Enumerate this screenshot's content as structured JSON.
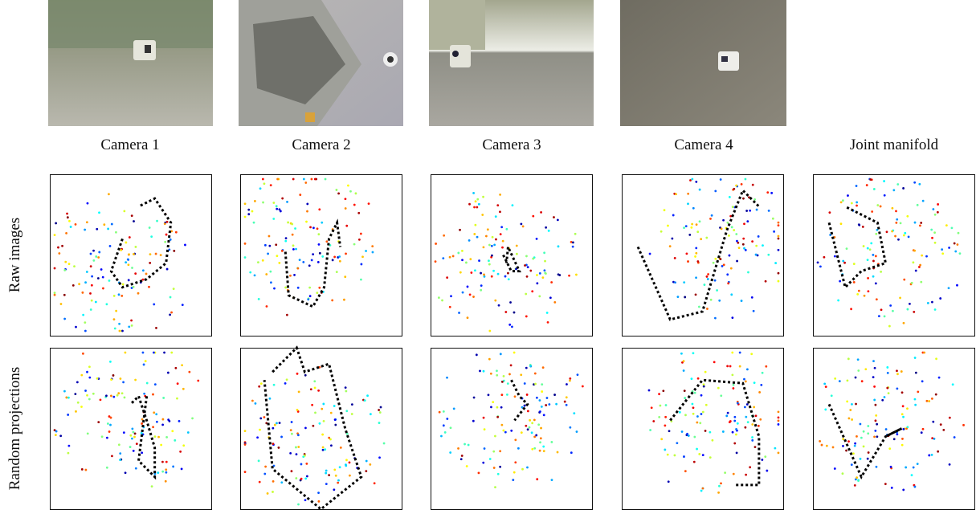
{
  "columns": [
    "Camera 1",
    "Camera 2",
    "Camera 3",
    "Camera 4",
    "Joint manifold"
  ],
  "rows": [
    "Raw images",
    "Random projections"
  ]
}
